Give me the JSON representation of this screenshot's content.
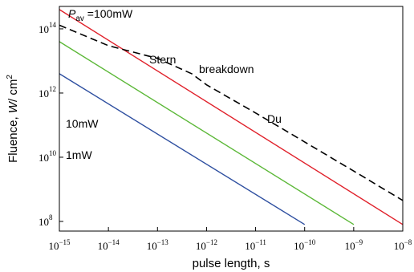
{
  "chart_data": {
    "type": "line",
    "title": "",
    "xlabel": "pulse length, s",
    "ylabel_parts": {
      "pre": "Fluence, ",
      "italic": "W",
      "post": "/ cm",
      "sup": "2"
    },
    "xscale": "log",
    "yscale": "log",
    "xlim": [
      1e-15,
      1e-08
    ],
    "ylim": [
      50000000.0,
      500000000000000.0
    ],
    "grid": false,
    "x_ticks": [
      {
        "base": "10",
        "exp": "−15"
      },
      {
        "base": "10",
        "exp": "−14"
      },
      {
        "base": "10",
        "exp": "−13"
      },
      {
        "base": "10",
        "exp": "−12"
      },
      {
        "base": "10",
        "exp": "−11"
      },
      {
        "base": "10",
        "exp": "−10"
      },
      {
        "base": "10",
        "exp": "−9"
      },
      {
        "base": "10",
        "exp": "−8"
      }
    ],
    "y_ticks": [
      {
        "base": "10",
        "exp": "8"
      },
      {
        "base": "10",
        "exp": "10"
      },
      {
        "base": "10",
        "exp": "12"
      },
      {
        "base": "10",
        "exp": "14"
      }
    ],
    "series": [
      {
        "name": "",
        "color": "#e0202a",
        "style": "solid",
        "x": [
          1e-15,
          1e-08
        ],
        "y": [
          400000000000000.0,
          80000000.0
        ]
      },
      {
        "name": "",
        "color": "#5cb838",
        "style": "solid",
        "x": [
          1e-15,
          1e-09
        ],
        "y": [
          40000000000000.0,
          80000000.0
        ]
      },
      {
        "name": "",
        "color": "#2e4fa0",
        "style": "solid",
        "x": [
          1e-15,
          1e-10
        ],
        "y": [
          4000000000000.0,
          80000000.0
        ]
      },
      {
        "name": "",
        "color": "#000000",
        "style": "dashed",
        "x": [
          1e-15,
          1e-14,
          1e-13,
          5e-13,
          1e-12,
          1e-11,
          1e-10,
          1e-09,
          1e-08
        ],
        "y": [
          130000000000000.0,
          30000000000000.0,
          12000000000000.0,
          4000000000000.0,
          1800000000000.0,
          240000000000.0,
          30000000000.0,
          3700000000.0,
          450000000.0
        ]
      }
    ],
    "annotations": {
      "p_av": {
        "italic": "P",
        "sub": "av",
        "rest": " =100mW"
      },
      "l10": "10mW",
      "l1": "1mW",
      "stern": "Stern",
      "breakdown": "breakdown",
      "du": "Du"
    }
  }
}
